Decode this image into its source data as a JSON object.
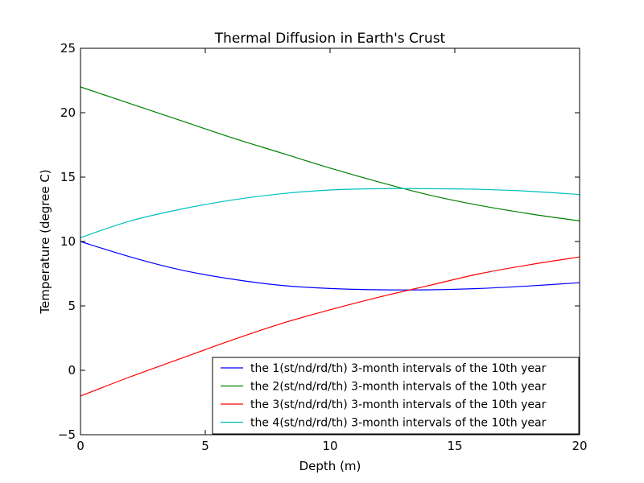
{
  "chart_data": {
    "type": "line",
    "title": "Thermal Diffusion in Earth's Crust",
    "xlabel": "Depth (m)",
    "ylabel": "Temperature (degree C)",
    "xlim": [
      0,
      20
    ],
    "ylim": [
      -5,
      25
    ],
    "xticks": [
      0,
      5,
      10,
      15,
      20
    ],
    "xtick_labels": [
      "0",
      "5",
      "10",
      "15",
      "20"
    ],
    "yticks": [
      -5,
      0,
      5,
      10,
      15,
      20,
      25
    ],
    "ytick_labels": [
      "−5",
      "0",
      "5",
      "10",
      "15",
      "20",
      "25"
    ],
    "grid": false,
    "legend_position": "lower-right",
    "x": [
      0,
      2,
      4,
      6,
      8,
      10,
      12,
      14,
      16,
      18,
      20
    ],
    "series": [
      {
        "name": "the 1(st/nd/rd/th) 3-month intervals of the 10th year",
        "color": "#0000ff",
        "values": [
          10.0,
          8.8,
          7.8,
          7.1,
          6.6,
          6.35,
          6.25,
          6.25,
          6.35,
          6.55,
          6.8
        ]
      },
      {
        "name": "the 2(st/nd/rd/th) 3-month intervals of the 10th year",
        "color": "#008000",
        "values": [
          22.0,
          20.7,
          19.4,
          18.1,
          16.9,
          15.7,
          14.6,
          13.6,
          12.8,
          12.15,
          11.6
        ]
      },
      {
        "name": "the 3(st/nd/rd/th) 3-month intervals of the 10th year",
        "color": "#ff0000",
        "values": [
          -2.0,
          -0.5,
          0.9,
          2.3,
          3.6,
          4.7,
          5.7,
          6.6,
          7.5,
          8.2,
          8.8
        ]
      },
      {
        "name": "the 4(st/nd/rd/th) 3-month intervals of the 10th year",
        "color": "#00bfbf",
        "values": [
          10.3,
          11.6,
          12.5,
          13.2,
          13.7,
          14.0,
          14.1,
          14.1,
          14.05,
          13.9,
          13.65
        ]
      }
    ]
  }
}
